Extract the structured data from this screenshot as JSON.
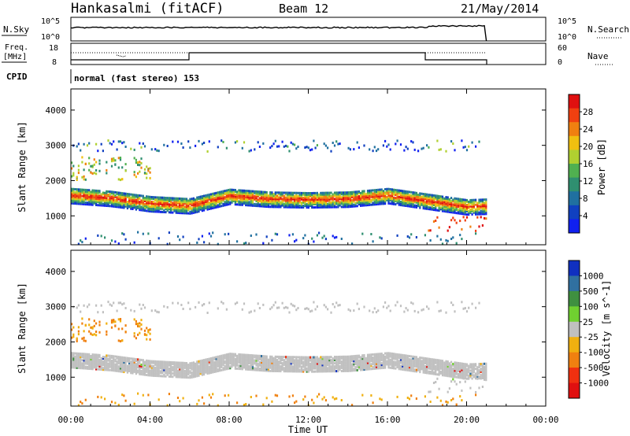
{
  "header": {
    "station": "Hankasalmi (fitACF)",
    "beam": "Beam 12",
    "date": "21/May/2014"
  },
  "panels": {
    "nsky_label": "N.Sky",
    "nsearch_label": "N.Search",
    "freq_label_1": "Freq.",
    "freq_label_2": "[MHz]",
    "nave_label": "Nave",
    "cpid_label": "CPID",
    "cpid_text": "normal (fast stereo) 153",
    "nsky_ticks": [
      "10^5",
      "10^0"
    ],
    "nsearch_ticks": [
      "10^5",
      "10^0"
    ],
    "freq_ticks": [
      "18",
      "8"
    ],
    "nave_ticks": [
      "60",
      "0"
    ]
  },
  "colors": {
    "frame": "#000000",
    "background": "#ffffff",
    "ground_scatter": "#c0c0c0"
  },
  "chart_data": [
    {
      "type": "heatmap",
      "quantity": "power",
      "xlabel": "Time UT",
      "ylabel": "Slant Range [km]",
      "xlim": [
        0,
        24
      ],
      "ylim": [
        180,
        4600
      ],
      "x_ticks": [
        "00:00",
        "04:00",
        "08:00",
        "12:00",
        "16:00",
        "20:00",
        "00:00"
      ],
      "y_ticks": [
        "1000",
        "2000",
        "3000",
        "4000"
      ],
      "colorbar_label": "Power [dB]",
      "colorbar_ticks": [
        "4",
        "8",
        "12",
        "16",
        "20",
        "24",
        "28"
      ],
      "colorbar_colors": [
        "#1020f0",
        "#1040c0",
        "#2070a0",
        "#2f8f70",
        "#50b050",
        "#b0d030",
        "#f0c010",
        "#f08010",
        "#f04010",
        "#e01010"
      ],
      "data_end_hour": 21.0,
      "main_band_range_km": [
        [
          0,
          1620
        ],
        [
          2,
          1540
        ],
        [
          4,
          1390
        ],
        [
          6,
          1330
        ],
        [
          8,
          1600
        ],
        [
          10,
          1520
        ],
        [
          12,
          1500
        ],
        [
          14,
          1520
        ],
        [
          16,
          1620
        ],
        [
          18,
          1460
        ],
        [
          20,
          1300
        ],
        [
          21,
          1320
        ]
      ]
    },
    {
      "type": "heatmap",
      "quantity": "velocity",
      "xlabel": "Time UT",
      "ylabel": "Slant Range [km]",
      "xlim": [
        0,
        24
      ],
      "ylim": [
        180,
        4600
      ],
      "x_ticks": [
        "00:00",
        "04:00",
        "08:00",
        "12:00",
        "16:00",
        "20:00",
        "00:00"
      ],
      "y_ticks": [
        "1000",
        "2000",
        "3000",
        "4000"
      ],
      "colorbar_label": "Velocity [m s^-1]",
      "colorbar_ticks": [
        "1000",
        "500",
        "100",
        "25",
        "-25",
        "-100",
        "-500",
        "-1000"
      ],
      "colorbar_colors": [
        "#1030c0",
        "#3070a0",
        "#3f9040",
        "#70d030",
        "#c0c0c0",
        "#f0b010",
        "#f08010",
        "#f03010",
        "#e01010"
      ],
      "data_end_hour": 21.0
    }
  ]
}
